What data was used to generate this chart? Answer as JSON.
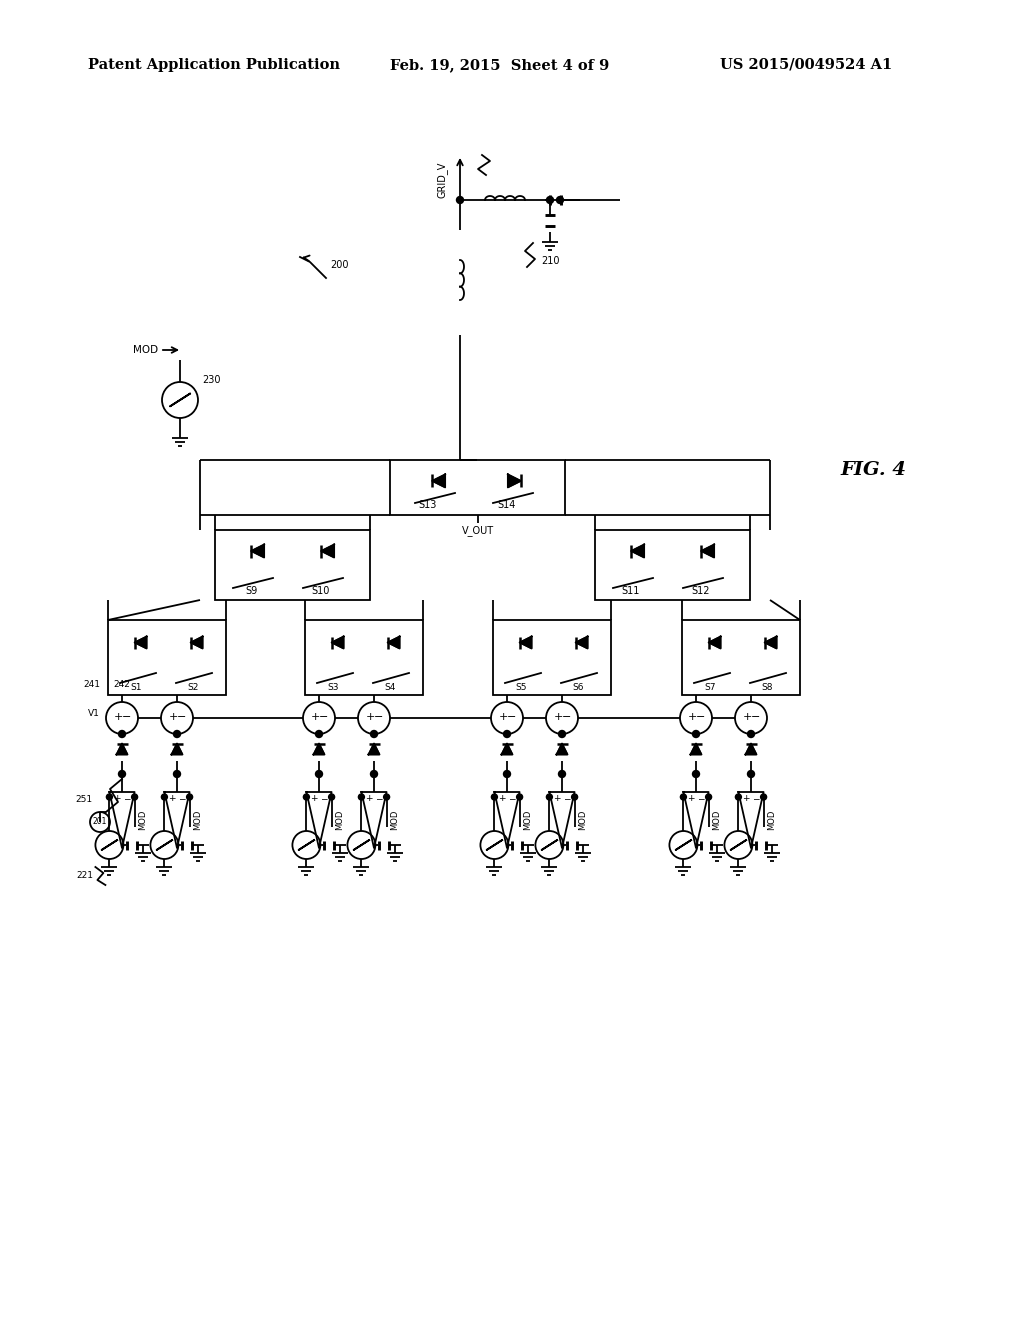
{
  "header_left": "Patent Application Publication",
  "header_center": "Feb. 19, 2015  Sheet 4 of 9",
  "header_right": "US 2015/0049524 A1",
  "background": "#ffffff",
  "line_color": "#000000",
  "fig_label": "FIG. 4"
}
